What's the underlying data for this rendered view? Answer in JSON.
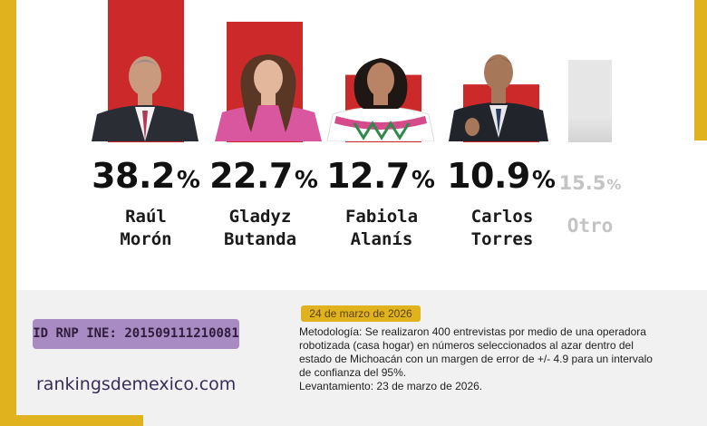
{
  "chart_data": {
    "type": "bar",
    "categories": [
      "Raúl Morón",
      "Gladyz Butanda",
      "Fabiola Alanís",
      "Carlos Torres",
      "Otro"
    ],
    "values": [
      38.2,
      22.7,
      12.7,
      10.9,
      15.5
    ],
    "value_labels": [
      "38.2",
      "22.7",
      "12.7",
      "10.9",
      "15.5"
    ],
    "value_suffix": "%",
    "name_lines": [
      [
        "Raúl",
        "Morón"
      ],
      [
        "Gladyz",
        "Butanda"
      ],
      [
        "Fabiola",
        "Alanís"
      ],
      [
        "Carlos",
        "Torres"
      ],
      [
        "Otro"
      ]
    ],
    "bar_colors": [
      "#cc2a2a",
      "#cc2a2a",
      "#cc2a2a",
      "#cc2a2a",
      "#c9c9cb"
    ],
    "title": "",
    "xlabel": "",
    "ylabel": ""
  },
  "footer": {
    "rnp": "ID RNP INE: 201509111210081",
    "site": "rankingsdemexico.com",
    "date": "24 de marzo de 2026",
    "method_lines": [
      "Metodología: Se realizaron 400 entrevistas por medio de una operadora",
      "robotizada (casa hogar) en números seleccionados al azar dentro del",
      "estado de Michoacán con un margen de error de +/- 4.9 para un intervalo",
      "de confianza del 95%.",
      "Levantamiento: 23 de marzo de 2026."
    ]
  },
  "colors": {
    "accent_yellow": "#e0b21e",
    "bar_red": "#cc2a2a",
    "bar_other": "#c9c9cb",
    "badge_purple": "#a98bc3",
    "footer_bg": "#f1f1f2"
  }
}
